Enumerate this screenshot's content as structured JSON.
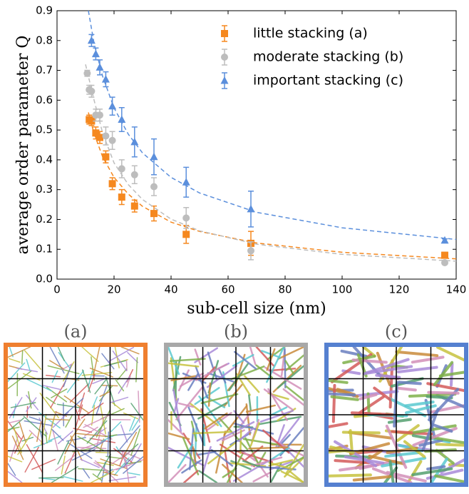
{
  "chart_data": {
    "type": "scatter",
    "xlabel": "sub-cell size (nm)",
    "ylabel": "average order parameter Q",
    "xlim": [
      0,
      140
    ],
    "xticks": [
      0,
      20,
      40,
      60,
      80,
      100,
      120,
      140
    ],
    "ylim": [
      0,
      0.9
    ],
    "yticks": [
      {
        "value": 0,
        "label": "0.0"
      },
      0.1,
      0.2,
      0.3,
      0.4,
      0.5,
      0.6,
      0.7,
      0.8,
      0.9
    ],
    "legend": "upper right",
    "series": [
      {
        "name": "little stacking (a)",
        "color": "#f5881f",
        "marker": "square",
        "x": [
          11.3,
          12.1,
          13.6,
          15.0,
          17.1,
          19.4,
          22.7,
          27.2,
          34.0,
          45.3,
          68.0,
          136
        ],
        "values": [
          0.535,
          0.53,
          0.49,
          0.475,
          0.41,
          0.32,
          0.275,
          0.245,
          0.22,
          0.15,
          0.12,
          0.08
        ],
        "errors": [
          0.015,
          0.015,
          0.02,
          0.02,
          0.02,
          0.02,
          0.025,
          0.02,
          0.025,
          0.03,
          0.04,
          0.01
        ],
        "fit": {
          "x": [
            11,
            13,
            16,
            20,
            25,
            30,
            40,
            50,
            70,
            100,
            140
          ],
          "values": [
            0.559,
            0.488,
            0.41,
            0.341,
            0.285,
            0.244,
            0.191,
            0.16,
            0.121,
            0.09,
            0.068
          ]
        }
      },
      {
        "name": "moderate stacking (b)",
        "color": "#bdbdbd",
        "marker": "circle",
        "x": [
          10.6,
          11.3,
          12.1,
          13.6,
          15.0,
          17.1,
          19.4,
          22.7,
          27.2,
          34.0,
          45.3,
          68.0,
          136
        ],
        "values": [
          0.69,
          0.635,
          0.63,
          0.55,
          0.55,
          0.48,
          0.465,
          0.37,
          0.35,
          0.31,
          0.205,
          0.095,
          0.055
        ],
        "errors": [
          0.01,
          0.015,
          0.02,
          0.02,
          0.02,
          0.03,
          0.03,
          0.03,
          0.03,
          0.03,
          0.035,
          0.03,
          0.005
        ],
        "fit": {
          "x": [
            10,
            13,
            16,
            20,
            25,
            30,
            40,
            50,
            70,
            100,
            140
          ],
          "values": [
            0.72,
            0.6,
            0.49,
            0.39,
            0.317,
            0.267,
            0.201,
            0.162,
            0.117,
            0.083,
            0.06
          ]
        }
      },
      {
        "name": "important stacking (c)",
        "color": "#5b8fdc",
        "marker": "triangle",
        "x": [
          12.1,
          13.6,
          15.0,
          17.1,
          19.4,
          22.7,
          27.2,
          34.0,
          45.3,
          68.0,
          136
        ],
        "values": [
          0.8,
          0.755,
          0.71,
          0.67,
          0.58,
          0.535,
          0.46,
          0.41,
          0.325,
          0.235,
          0.13
        ],
        "errors": [
          0.02,
          0.02,
          0.025,
          0.025,
          0.03,
          0.04,
          0.05,
          0.06,
          0.05,
          0.06,
          0.005
        ],
        "fit": {
          "x": [
            11,
            13,
            16,
            20,
            25,
            30,
            40,
            50,
            70,
            100,
            140
          ],
          "values": [
            0.9,
            0.79,
            0.68,
            0.574,
            0.486,
            0.423,
            0.341,
            0.289,
            0.224,
            0.172,
            0.133
          ]
        }
      }
    ]
  },
  "panels": [
    "(a)",
    "(b)",
    "(c)"
  ]
}
